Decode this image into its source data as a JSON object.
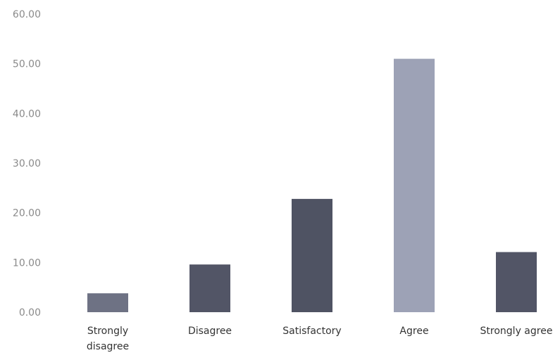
{
  "chart_data": {
    "type": "bar",
    "title": "",
    "xlabel": "",
    "ylabel": "",
    "categories": [
      "Strongly disagree",
      "Disagree",
      "Satisfactory",
      "Agree",
      "Strongly agree"
    ],
    "category_lines": [
      [
        "Strongly",
        "disagree"
      ],
      [
        "Disagree"
      ],
      [
        "Satisfactory"
      ],
      [
        "Agree"
      ],
      [
        "Strongly agree"
      ]
    ],
    "values": [
      3.8,
      9.6,
      22.8,
      51.0,
      12.1
    ],
    "ylim": [
      0,
      60
    ],
    "yticks": [
      0,
      10,
      20,
      30,
      40,
      50,
      60
    ],
    "ytick_labels": [
      "0.00",
      "10.00",
      "20.00",
      "30.00",
      "40.00",
      "50.00",
      "60.00"
    ],
    "grid": false,
    "legend": "none",
    "colors": {
      "Strongly disagree": "#6e7284",
      "Disagree": "#525566",
      "Satisfactory": "#4f5363",
      "Agree": "#9da2b6",
      "Strongly agree": "#525566"
    }
  }
}
